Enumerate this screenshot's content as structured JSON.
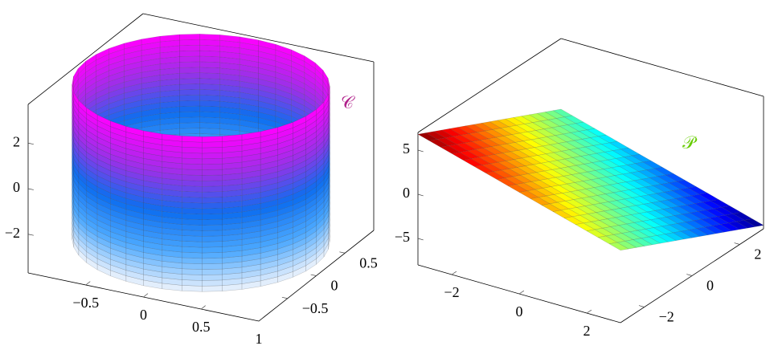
{
  "chart_data": [
    {
      "type": "cylinder",
      "annotation": "𝒞",
      "annotation_color": "#b0208a",
      "radius": 1,
      "z": [
        -3.2,
        3.6
      ],
      "colormap": [
        "#eef3fc",
        "#4aa8ff",
        "#0d6ef0",
        "#9a30e8",
        "#ff00ff"
      ],
      "xlim": [
        -1,
        1
      ],
      "ylim": [
        -1,
        1
      ],
      "zlim": [
        -3.7,
        3.7
      ],
      "xticks": [
        {
          "value": -0.5,
          "label": "−0.5"
        },
        0,
        0.5,
        1
      ],
      "yticks": [
        {
          "value": -0.5,
          "label": "−0.5"
        },
        0,
        0.5
      ],
      "zticks": [
        {
          "value": -2,
          "label": "−2"
        },
        0,
        2
      ]
    },
    {
      "type": "surface",
      "annotation": "𝒫",
      "annotation_color": "#66cc00",
      "colormap": "jet",
      "x": [
        -3,
        -2,
        -1,
        0,
        1,
        2,
        3
      ],
      "y": [
        -3,
        -2,
        -1,
        0,
        1,
        2,
        3
      ],
      "z": [
        [
          6.8,
          5.7,
          4.6,
          3.5,
          2.4,
          1.3,
          0.2
        ],
        [
          5.5,
          4.4,
          3.3,
          2.2,
          1.1,
          0,
          -1.1
        ],
        [
          4.2,
          3.1,
          2,
          0.9,
          -0.2,
          -1.3,
          -2.4
        ],
        [
          2.9,
          1.8,
          0.7,
          -0.4,
          -1.5,
          -2.6,
          -3.7
        ],
        [
          1.6,
          0.5,
          -0.6,
          -1.7,
          -2.8,
          -3.9,
          -5
        ],
        [
          0.3,
          -0.8,
          -1.9,
          -3,
          -4.1,
          -5.2,
          -6.3
        ],
        [
          -1,
          -2.1,
          -3.2,
          -4.3,
          -5.4,
          -6.5,
          -7.6
        ]
      ],
      "xlim": [
        -3,
        3
      ],
      "ylim": [
        -3,
        3
      ],
      "zlim": [
        -8,
        7
      ],
      "xticks": [
        {
          "value": -2,
          "label": "−2"
        },
        0,
        2
      ],
      "yticks": [
        {
          "value": -2,
          "label": "−2"
        },
        0,
        2
      ],
      "zticks": [
        {
          "value": -5,
          "label": "−5"
        },
        0,
        5
      ]
    }
  ]
}
